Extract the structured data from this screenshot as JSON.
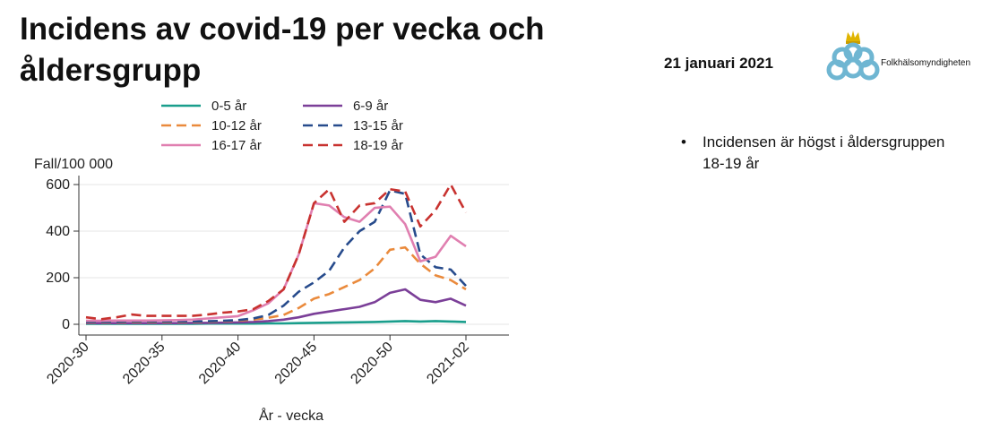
{
  "slide": {
    "title": "Incidens av covid-19 per vecka och åldersgrupp",
    "date": "21 januari 2021",
    "logo_text": "Folkhälsomyndigheten",
    "bullets": [
      "Incidensen är högst i åldersgruppen 18-19 år"
    ]
  },
  "colors": {
    "s0_5": "#1a9e8c",
    "s6_9": "#7b3f98",
    "s10_12": "#ea8a3c",
    "s13_15": "#274b8c",
    "s16_17": "#e07fb0",
    "s18_19": "#c8322f",
    "logo_blue": "#6fb6d2",
    "logo_gold": "#e0b400"
  },
  "chart_data": {
    "type": "line",
    "title": "",
    "xlabel": "År - vecka",
    "ylabel": "Fall/100 000",
    "x_ticks": [
      "2020-30",
      "2020-35",
      "2020-40",
      "2020-45",
      "2020-50",
      "2021-02"
    ],
    "x": [
      "2020-30",
      "2020-31",
      "2020-32",
      "2020-33",
      "2020-34",
      "2020-35",
      "2020-36",
      "2020-37",
      "2020-38",
      "2020-39",
      "2020-40",
      "2020-41",
      "2020-42",
      "2020-43",
      "2020-44",
      "2020-45",
      "2020-46",
      "2020-47",
      "2020-48",
      "2020-49",
      "2020-50",
      "2020-51",
      "2020-52",
      "2020-53",
      "2021-01",
      "2021-02"
    ],
    "y_ticks": [
      0,
      200,
      400,
      600
    ],
    "ylim": [
      0,
      620
    ],
    "grid": true,
    "legend_position": "top",
    "series": [
      {
        "name": "0-5 år",
        "key": "s0_5",
        "dash": "solid",
        "values": [
          2,
          2,
          2,
          2,
          2,
          2,
          2,
          2,
          3,
          3,
          3,
          3,
          4,
          4,
          5,
          6,
          7,
          8,
          9,
          10,
          12,
          14,
          12,
          14,
          12,
          10
        ]
      },
      {
        "name": "6-9 år",
        "key": "s6_9",
        "dash": "solid",
        "values": [
          5,
          5,
          5,
          5,
          5,
          5,
          5,
          6,
          6,
          7,
          8,
          10,
          14,
          20,
          30,
          45,
          55,
          65,
          75,
          95,
          135,
          150,
          105,
          95,
          110,
          80
        ]
      },
      {
        "name": "10-12 år",
        "key": "s10_12",
        "dash": "dash",
        "values": [
          8,
          8,
          8,
          9,
          9,
          9,
          9,
          10,
          11,
          13,
          16,
          20,
          28,
          40,
          70,
          110,
          130,
          160,
          190,
          240,
          320,
          330,
          260,
          210,
          190,
          150
        ]
      },
      {
        "name": "13-15 år",
        "key": "s13_15",
        "dash": "dash",
        "values": [
          10,
          10,
          10,
          11,
          11,
          11,
          11,
          12,
          13,
          15,
          18,
          25,
          40,
          80,
          140,
          180,
          230,
          330,
          400,
          440,
          575,
          560,
          300,
          245,
          235,
          165
        ]
      },
      {
        "name": "16-17 år",
        "key": "s16_17",
        "dash": "solid",
        "values": [
          15,
          15,
          16,
          16,
          16,
          17,
          18,
          20,
          25,
          30,
          35,
          60,
          90,
          150,
          300,
          520,
          510,
          460,
          440,
          500,
          505,
          430,
          270,
          290,
          380,
          335
        ]
      },
      {
        "name": "18-19 år",
        "key": "s18_19",
        "dash": "dash",
        "values": [
          30,
          22,
          30,
          42,
          36,
          36,
          36,
          36,
          42,
          50,
          55,
          65,
          100,
          150,
          300,
          520,
          580,
          440,
          510,
          520,
          580,
          570,
          420,
          490,
          600,
          480
        ]
      }
    ]
  }
}
